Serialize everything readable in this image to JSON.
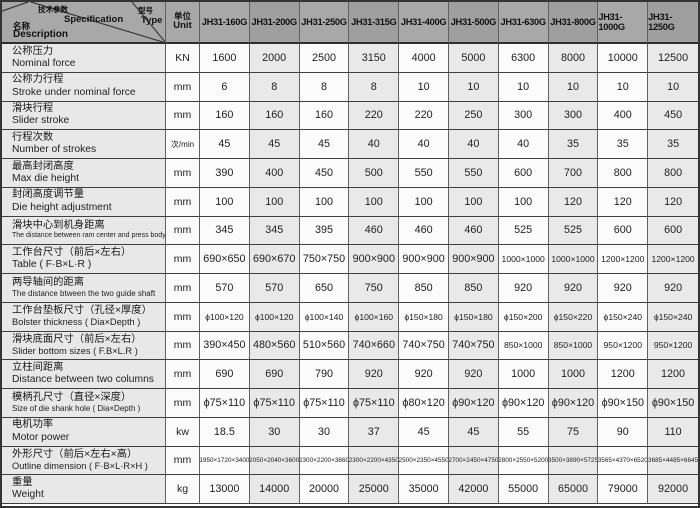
{
  "table": {
    "corner": {
      "spec_zh": "技术参数",
      "spec_en": "Specification",
      "type_zh": "型号",
      "type_en": "Type",
      "name_zh": "名称",
      "name_en": "Description"
    },
    "unit_header": {
      "zh": "单位",
      "en": "Unit"
    },
    "models": [
      "JH31-160G",
      "JH31-200G",
      "JH31-250G",
      "JH31-315G",
      "JH31-400G",
      "JH31-500G",
      "JH31-630G",
      "JH31-800G",
      "JH31-1000G",
      "JH31-1250G"
    ],
    "rows": [
      {
        "zh": "公称压力",
        "en": "Nominal force",
        "unit": "KN",
        "values": [
          "1600",
          "2000",
          "2500",
          "3150",
          "4000",
          "5000",
          "6300",
          "8000",
          "10000",
          "12500"
        ]
      },
      {
        "zh": "公称力行程",
        "en": "Stroke under nominal force",
        "unit": "mm",
        "values": [
          "6",
          "8",
          "8",
          "8",
          "10",
          "10",
          "10",
          "10",
          "10",
          "10"
        ]
      },
      {
        "zh": "滑块行程",
        "en": "Slider stroke",
        "unit": "mm",
        "values": [
          "160",
          "160",
          "160",
          "220",
          "220",
          "250",
          "300",
          "300",
          "400",
          "450"
        ]
      },
      {
        "zh": "行程次数",
        "en": "Number of strokes",
        "unit": "次/min",
        "values": [
          "45",
          "45",
          "45",
          "40",
          "40",
          "40",
          "40",
          "35",
          "35",
          "35"
        ]
      },
      {
        "zh": "最高封闭高度",
        "en": "Max die height",
        "unit": "mm",
        "values": [
          "390",
          "400",
          "450",
          "500",
          "550",
          "550",
          "600",
          "700",
          "800",
          "800"
        ]
      },
      {
        "zh": "封闭高度调节量",
        "en": "Die height adjustment",
        "unit": "mm",
        "values": [
          "100",
          "100",
          "100",
          "100",
          "100",
          "100",
          "100",
          "120",
          "120",
          "120"
        ]
      },
      {
        "zh": "滑块中心到机身距离",
        "en": "The distance between ram center and press body",
        "unit": "mm",
        "values": [
          "345",
          "345",
          "395",
          "460",
          "460",
          "460",
          "525",
          "525",
          "600",
          "600"
        ]
      },
      {
        "zh": "工作台尺寸（前后×左右）",
        "en": "Table ( F·B×L·R )",
        "unit": "mm",
        "values": [
          "690×650",
          "690×670",
          "750×750",
          "900×900",
          "900×900",
          "900×900",
          "1000×1000",
          "1000×1000",
          "1200×1200",
          "1200×1200"
        ]
      },
      {
        "zh": "两导轴间的距离",
        "en": "The distance btween the two guide shaft",
        "unit": "mm",
        "values": [
          "570",
          "570",
          "650",
          "750",
          "850",
          "850",
          "920",
          "920",
          "920",
          "920"
        ]
      },
      {
        "zh": "工作台垫板尺寸（孔径×厚度）",
        "en": "Bolster thickness ( Dia×Depth )",
        "unit": "mm",
        "values": [
          "ϕ100×120",
          "ϕ100×120",
          "ϕ100×140",
          "ϕ100×160",
          "ϕ150×180",
          "ϕ150×180",
          "ϕ150×200",
          "ϕ150×220",
          "ϕ150×240",
          "ϕ150×240"
        ]
      },
      {
        "zh": "滑块底面尺寸（前后×左右）",
        "en": "Slider bottom sizes ( F.B×L.R )",
        "unit": "mm",
        "values": [
          "390×450",
          "480×560",
          "510×560",
          "740×660",
          "740×750",
          "740×750",
          "850×1000",
          "850×1000",
          "950×1200",
          "950×1200"
        ]
      },
      {
        "zh": "立柱间距离",
        "en": "Distance between two columns",
        "unit": "mm",
        "values": [
          "690",
          "690",
          "790",
          "920",
          "920",
          "920",
          "1000",
          "1000",
          "1200",
          "1200"
        ]
      },
      {
        "zh": "模柄孔尺寸（直径×深度）",
        "en": "Size of die shank hole ( Dia×Depth )",
        "unit": "mm",
        "values": [
          "ϕ75×110",
          "ϕ75×110",
          "ϕ75×110",
          "ϕ75×110",
          "ϕ80×120",
          "ϕ90×120",
          "ϕ90×120",
          "ϕ90×120",
          "ϕ90×150",
          "ϕ90×150"
        ]
      },
      {
        "zh": "电机功率",
        "en": "Motor power",
        "unit": "kw",
        "values": [
          "18.5",
          "30",
          "30",
          "37",
          "45",
          "45",
          "55",
          "75",
          "90",
          "110"
        ]
      },
      {
        "zh": "外形尺寸（前后×左右×高）",
        "en": "Outline dimension ( F·B×L·R×H )",
        "unit": "mm",
        "values": [
          "1950×1720×3400",
          "2050×2040×3600",
          "2300×2200×3860",
          "2300×2200×4350",
          "2500×2350×4550",
          "2700×2450×4750",
          "2800×2550×5200",
          "3500×3890×5725",
          "3565×4370×6520",
          "3685×4485×6645"
        ]
      },
      {
        "zh": "重量",
        "en": "Weight",
        "unit": "kg",
        "values": [
          "13000",
          "14000",
          "20000",
          "25000",
          "35000",
          "42000",
          "55000",
          "65000",
          "79000",
          "92000"
        ]
      }
    ]
  },
  "colors": {
    "header_bg": "#a8a8a8",
    "description_bg": "#e8e8e8",
    "shaded_column_bg": "#e9e9e9",
    "border": "#3f3f3f"
  }
}
